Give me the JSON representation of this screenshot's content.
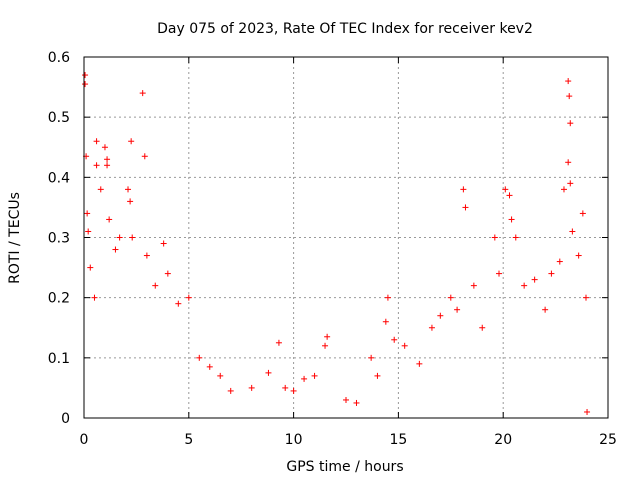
{
  "chart_data": {
    "type": "scatter",
    "title": "Day 075 of 2023, Rate Of TEC Index for receiver kev2",
    "xlabel": "GPS time / hours",
    "ylabel": "ROTI / TECUs",
    "xlim": [
      0,
      25
    ],
    "ylim": [
      0,
      0.6
    ],
    "xticks": [
      "0",
      "5",
      "10",
      "15",
      "20",
      "25"
    ],
    "yticks": [
      "0",
      "0.1",
      "0.2",
      "0.3",
      "0.4",
      "0.5",
      "0.6"
    ],
    "grid": true,
    "marker": "+",
    "color": "#ff0000",
    "series": [
      {
        "points": [
          [
            0.05,
            0.57
          ],
          [
            0.05,
            0.555
          ],
          [
            0.1,
            0.435
          ],
          [
            0.15,
            0.34
          ],
          [
            0.2,
            0.31
          ],
          [
            0.3,
            0.25
          ],
          [
            0.5,
            0.2
          ],
          [
            0.6,
            0.46
          ],
          [
            0.6,
            0.42
          ],
          [
            0.8,
            0.38
          ],
          [
            1.0,
            0.45
          ],
          [
            1.1,
            0.43
          ],
          [
            1.1,
            0.42
          ],
          [
            1.2,
            0.33
          ],
          [
            1.5,
            0.28
          ],
          [
            1.7,
            0.3
          ],
          [
            2.1,
            0.38
          ],
          [
            2.2,
            0.36
          ],
          [
            2.25,
            0.46
          ],
          [
            2.3,
            0.3
          ],
          [
            2.8,
            0.54
          ],
          [
            2.9,
            0.435
          ],
          [
            3.0,
            0.27
          ],
          [
            3.4,
            0.22
          ],
          [
            3.8,
            0.29
          ],
          [
            4.0,
            0.24
          ],
          [
            4.5,
            0.19
          ],
          [
            5.0,
            0.2
          ],
          [
            5.5,
            0.1
          ],
          [
            6.0,
            0.085
          ],
          [
            6.5,
            0.07
          ],
          [
            7.0,
            0.045
          ],
          [
            8.0,
            0.05
          ],
          [
            8.8,
            0.075
          ],
          [
            9.3,
            0.125
          ],
          [
            9.6,
            0.05
          ],
          [
            10.0,
            0.045
          ],
          [
            10.5,
            0.065
          ],
          [
            11.0,
            0.07
          ],
          [
            11.5,
            0.12
          ],
          [
            11.6,
            0.135
          ],
          [
            12.5,
            0.03
          ],
          [
            13.0,
            0.025
          ],
          [
            13.7,
            0.1
          ],
          [
            14.0,
            0.07
          ],
          [
            14.4,
            0.16
          ],
          [
            14.5,
            0.2
          ],
          [
            14.8,
            0.13
          ],
          [
            15.3,
            0.12
          ],
          [
            16.0,
            0.09
          ],
          [
            16.6,
            0.15
          ],
          [
            17.0,
            0.17
          ],
          [
            17.5,
            0.2
          ],
          [
            17.8,
            0.18
          ],
          [
            18.1,
            0.38
          ],
          [
            18.2,
            0.35
          ],
          [
            18.6,
            0.22
          ],
          [
            19.0,
            0.15
          ],
          [
            19.6,
            0.3
          ],
          [
            19.8,
            0.24
          ],
          [
            20.1,
            0.38
          ],
          [
            20.3,
            0.37
          ],
          [
            20.4,
            0.33
          ],
          [
            20.6,
            0.3
          ],
          [
            21.0,
            0.22
          ],
          [
            21.5,
            0.23
          ],
          [
            22.0,
            0.18
          ],
          [
            22.3,
            0.24
          ],
          [
            22.7,
            0.26
          ],
          [
            22.9,
            0.38
          ],
          [
            23.1,
            0.56
          ],
          [
            23.15,
            0.535
          ],
          [
            23.2,
            0.49
          ],
          [
            23.1,
            0.425
          ],
          [
            23.2,
            0.39
          ],
          [
            23.3,
            0.31
          ],
          [
            23.6,
            0.27
          ],
          [
            23.8,
            0.34
          ],
          [
            23.95,
            0.2
          ],
          [
            24.0,
            0.01
          ]
        ]
      }
    ]
  }
}
